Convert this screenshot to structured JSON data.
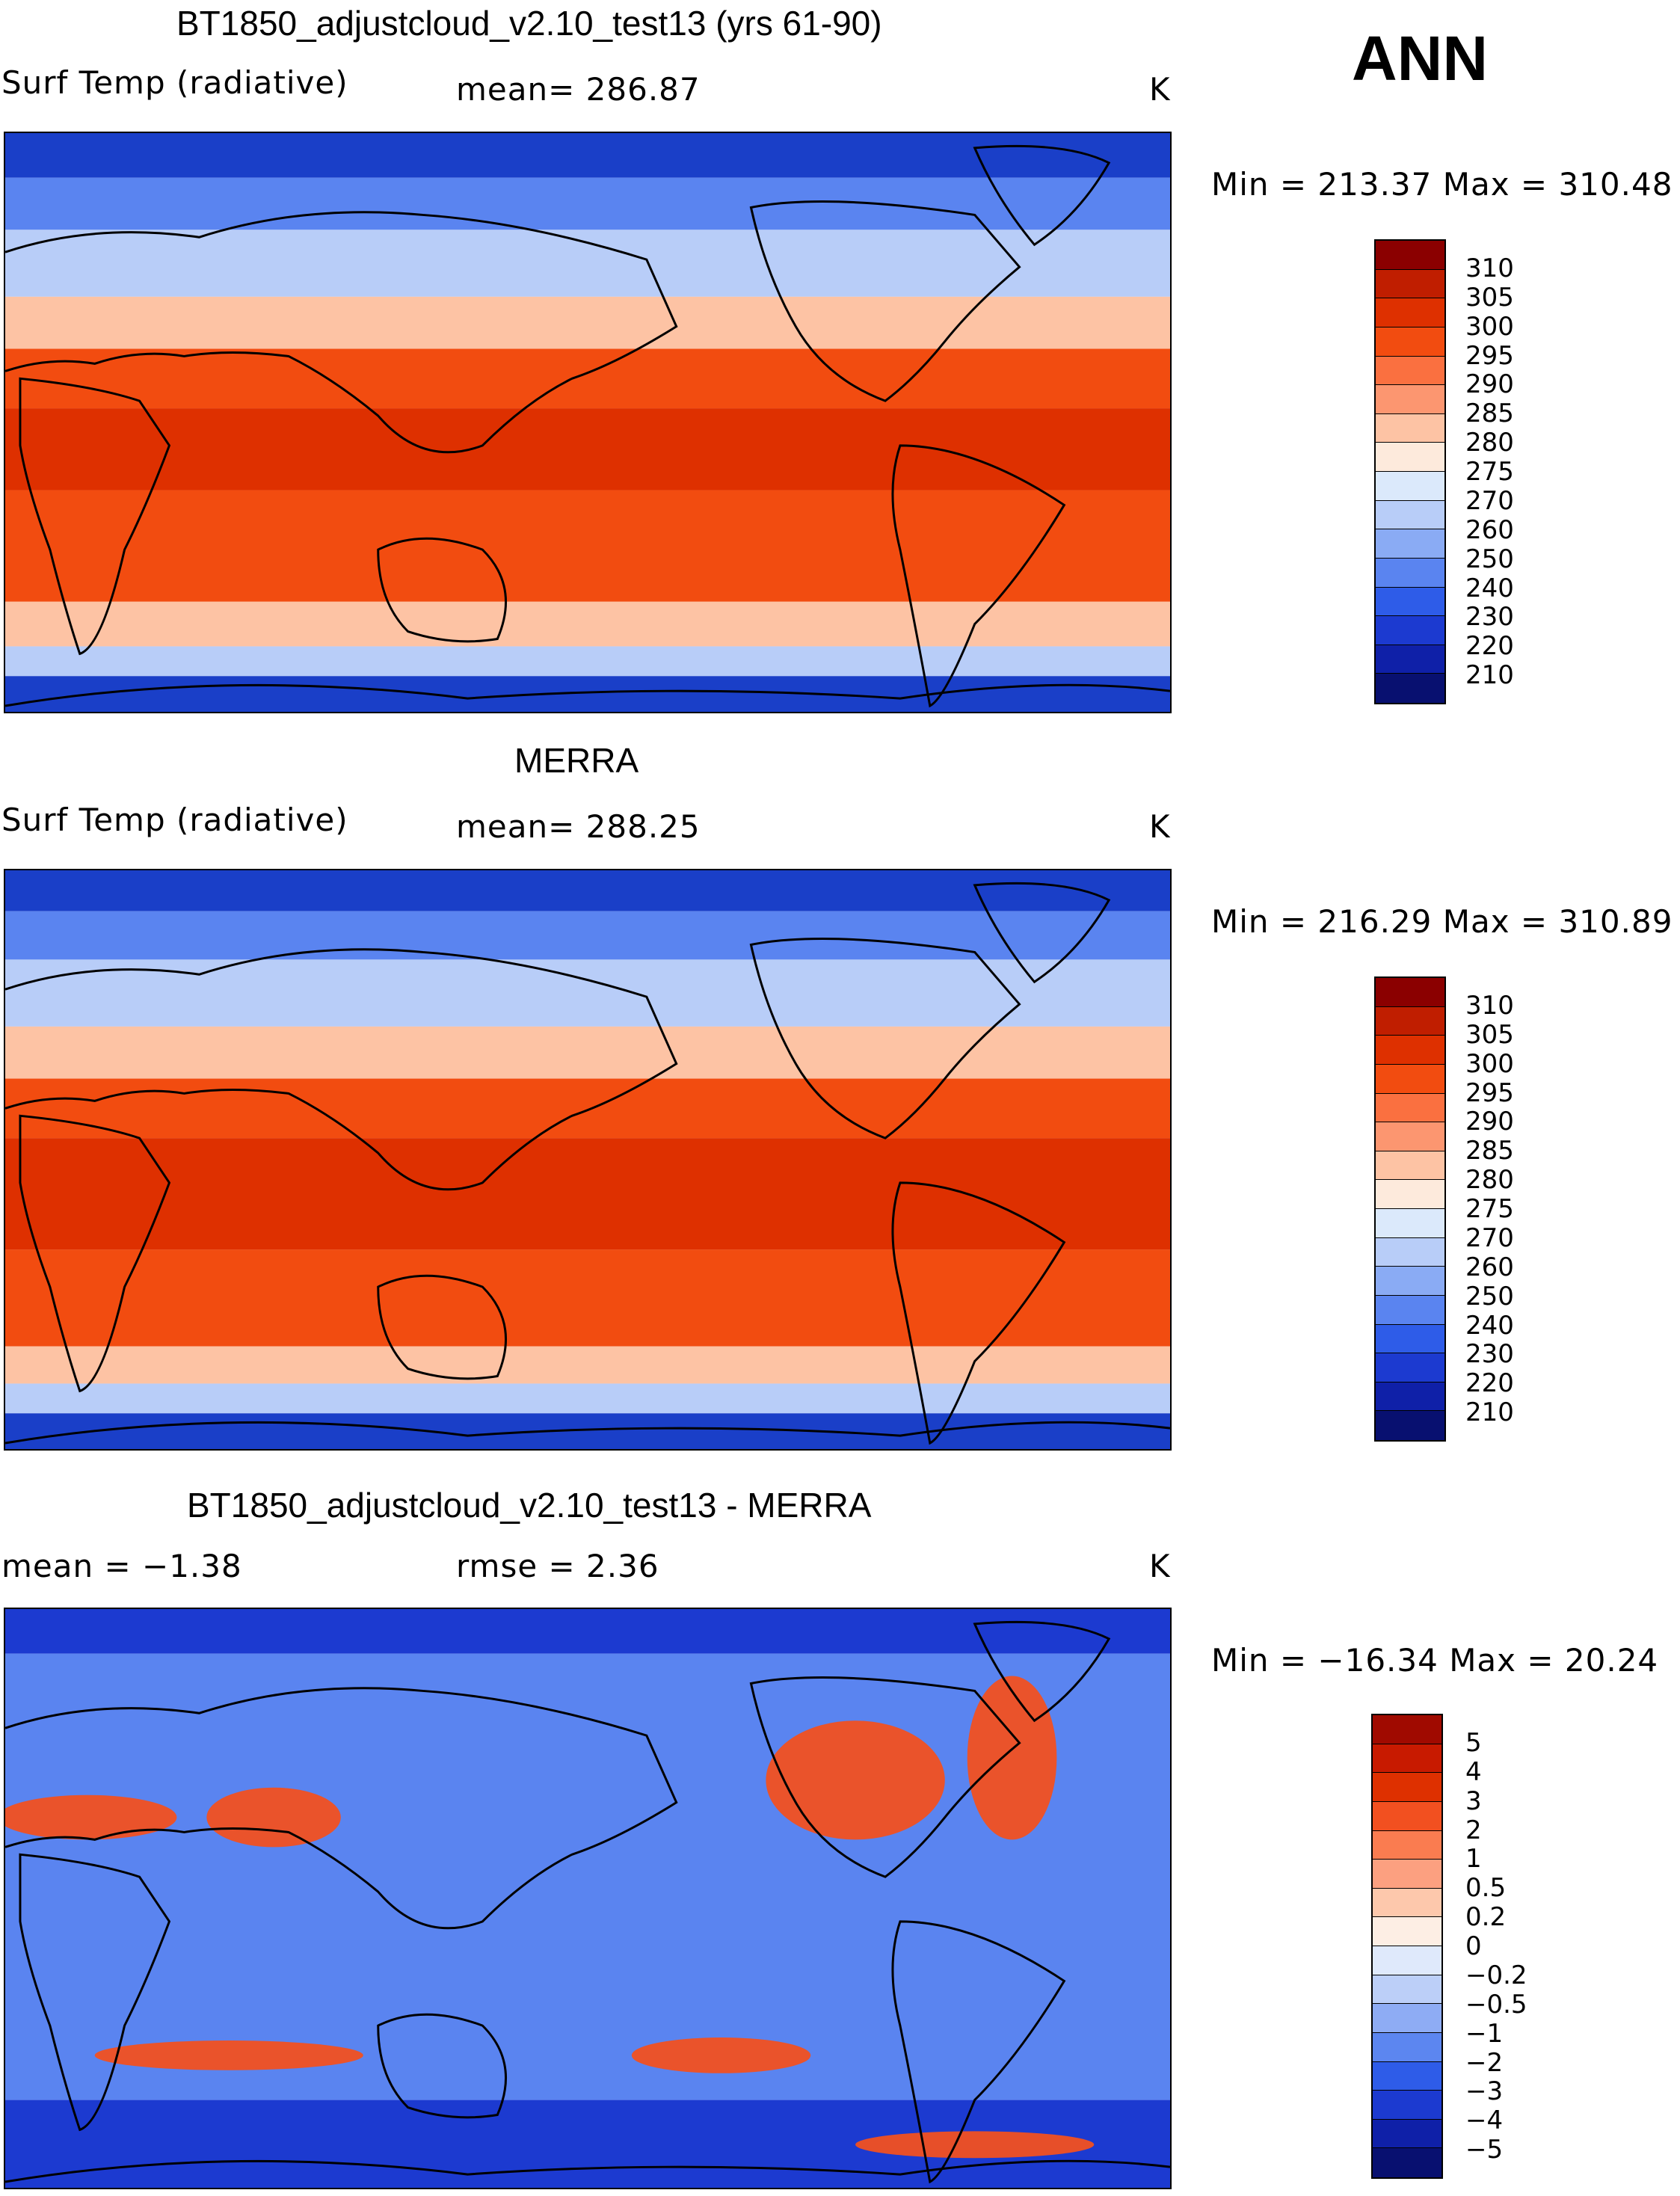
{
  "season": "ANN",
  "panels": [
    {
      "title": "BT1850_adjustcloud_v2.10_test13 (yrs 61-90)",
      "left_label": "Surf Temp (radiative)",
      "center_label": "mean=  286.87",
      "unit": "K",
      "minmax": "Min  =  213.37  Max  =  310.48",
      "scale_labels": [
        "310",
        "305",
        "300",
        "295",
        "290",
        "285",
        "280",
        "275",
        "270",
        "260",
        "250",
        "240",
        "230",
        "220",
        "210"
      ],
      "scale_colors": [
        "#8b0000",
        "#c01e00",
        "#de3000",
        "#f24c10",
        "#fa7040",
        "#fc9670",
        "#fdc3a4",
        "#fdeadc",
        "#dbe9fb",
        "#b8cdf8",
        "#8aabf4",
        "#5a84f0",
        "#2e5ce8",
        "#1c3ad0",
        "#0f20a8",
        "#081070"
      ]
    },
    {
      "title": "MERRA",
      "left_label": "Surf Temp (radiative)",
      "center_label": "mean=  288.25",
      "unit": "K",
      "minmax": "Min  =  216.29  Max  =  310.89",
      "scale_labels": [
        "310",
        "305",
        "300",
        "295",
        "290",
        "285",
        "280",
        "275",
        "270",
        "260",
        "250",
        "240",
        "230",
        "220",
        "210"
      ],
      "scale_colors": [
        "#8b0000",
        "#c01e00",
        "#de3000",
        "#f24c10",
        "#fa7040",
        "#fc9670",
        "#fdc3a4",
        "#fdeadc",
        "#dbe9fb",
        "#b8cdf8",
        "#8aabf4",
        "#5a84f0",
        "#2e5ce8",
        "#1c3ad0",
        "#0f20a8",
        "#081070"
      ]
    },
    {
      "title": "BT1850_adjustcloud_v2.10_test13 - MERRA",
      "left_label": "mean  =    −1.38",
      "center_label": "rmse  =     2.36",
      "unit": "K",
      "minmax": "Min  =  −16.34  Max  =     20.24",
      "scale_labels": [
        "5",
        "4",
        "3",
        "2",
        "1",
        "0.5",
        "0.2",
        "0",
        "−0.2",
        "−0.5",
        "−1",
        "−2",
        "−3",
        "−4",
        "−5"
      ],
      "scale_colors": [
        "#a00a00",
        "#c81a00",
        "#de3000",
        "#f25020",
        "#fa7c50",
        "#fca080",
        "#fdc8ac",
        "#fdeee4",
        "#dfe9fb",
        "#bccff8",
        "#8eacf4",
        "#5c86f0",
        "#2e5ce8",
        "#1c3ad0",
        "#0f20a8",
        "#081070"
      ]
    }
  ],
  "map_colors": {
    "polar": "#1a3fc8",
    "cold": "#5a84f0",
    "cool": "#b8cdf8",
    "mild": "#fdc3a4",
    "warm": "#f24c10",
    "hot": "#de3000",
    "diff_ocean": "#5a84f0",
    "diff_deep": "#1c3ad0",
    "diff_pos": "#f25020"
  }
}
